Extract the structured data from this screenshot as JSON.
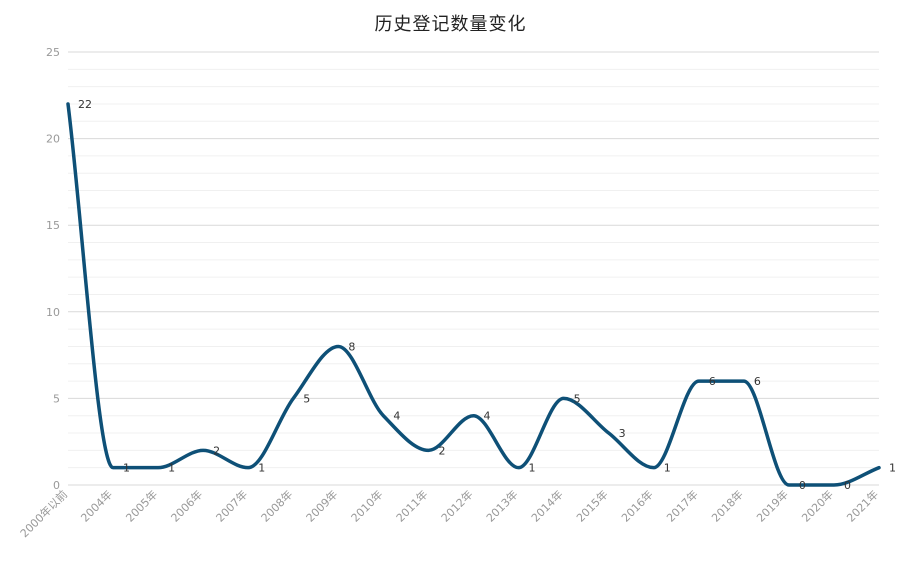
{
  "chart_data": {
    "type": "line",
    "title": "历史登记数量变化",
    "categories": [
      "2000年以前",
      "2004年",
      "2005年",
      "2006年",
      "2007年",
      "2008年",
      "2009年",
      "2010年",
      "2011年",
      "2012年",
      "2013年",
      "2014年",
      "2015年",
      "2016年",
      "2017年",
      "2018年",
      "2019年",
      "2020年",
      "2021年"
    ],
    "values": [
      22,
      1,
      1,
      2,
      1,
      5,
      8,
      4,
      2,
      4,
      1,
      5,
      3,
      1,
      6,
      6,
      0,
      0,
      1
    ],
    "ylim": [
      0,
      25
    ],
    "yticks": [
      0,
      5,
      10,
      15,
      20,
      25
    ],
    "line_color": "#0e5077",
    "grid": true,
    "legend": "none"
  }
}
